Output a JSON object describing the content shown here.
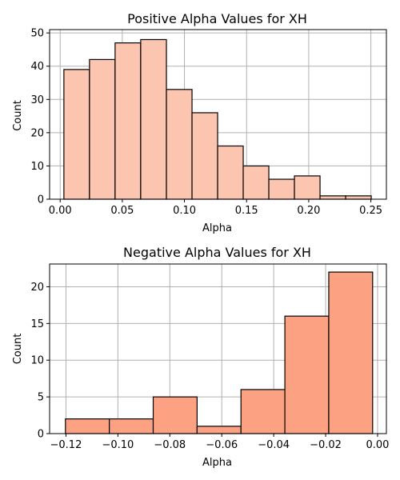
{
  "chart_data": [
    {
      "type": "bar",
      "title": "Positive Alpha Values for XH",
      "xlabel": "Alpha",
      "ylabel": "Count",
      "xlim": [
        -0.0085,
        0.2625
      ],
      "ylim": [
        0,
        51
      ],
      "x_ticks": [
        0.0,
        0.05,
        0.1,
        0.15,
        0.2,
        0.25
      ],
      "x_tick_labels": [
        "0.00",
        "0.05",
        "0.10",
        "0.15",
        "0.20",
        "0.25"
      ],
      "y_ticks": [
        0,
        10,
        20,
        30,
        40,
        50
      ],
      "y_tick_labels": [
        "0",
        "10",
        "20",
        "30",
        "40",
        "50"
      ],
      "bin_edges": [
        0.003,
        0.0236,
        0.0442,
        0.0648,
        0.0855,
        0.1061,
        0.1267,
        0.1473,
        0.1679,
        0.1885,
        0.2091,
        0.2297,
        0.2503
      ],
      "values": [
        39,
        42,
        47,
        48,
        33,
        26,
        16,
        10,
        6,
        7,
        1,
        1
      ],
      "color": "#fcc5b0",
      "grid": true
    },
    {
      "type": "bar",
      "title": "Negative Alpha Values for XH",
      "xlabel": "Alpha",
      "ylabel": "Count",
      "xlim": [
        -0.1263,
        0.0034
      ],
      "ylim": [
        0,
        23.1
      ],
      "x_ticks": [
        -0.12,
        -0.1,
        -0.08,
        -0.06,
        -0.04,
        -0.02,
        0.0
      ],
      "x_tick_labels": [
        "−0.12",
        "−0.10",
        "−0.08",
        "−0.06",
        "−0.04",
        "−0.02",
        "0.00"
      ],
      "y_ticks": [
        0,
        5,
        10,
        15,
        20
      ],
      "y_tick_labels": [
        "0",
        "5",
        "10",
        "15",
        "20"
      ],
      "bin_edges": [
        -0.1202,
        -0.1033,
        -0.0864,
        -0.0695,
        -0.0526,
        -0.0357,
        -0.0188,
        -0.0019
      ],
      "values": [
        2,
        2,
        5,
        1,
        6,
        16,
        22
      ],
      "color": "#fca283",
      "grid": true
    }
  ]
}
